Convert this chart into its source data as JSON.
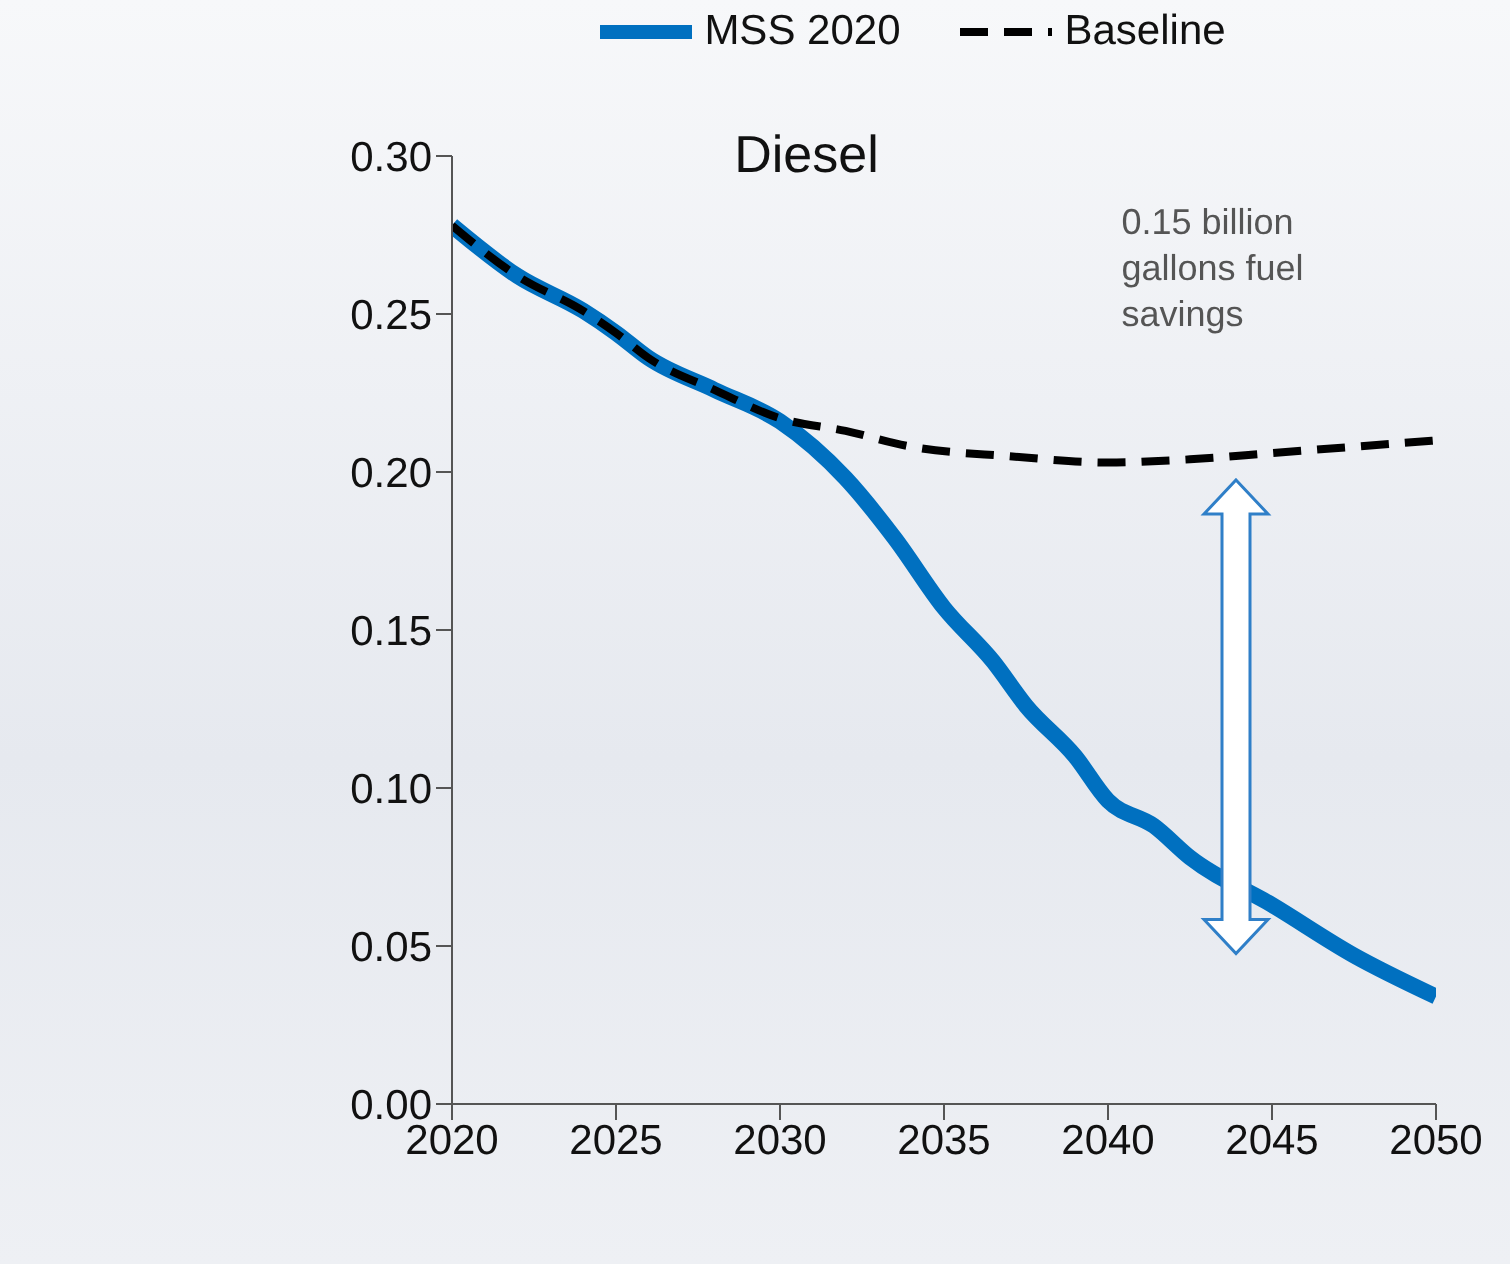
{
  "chart_data": {
    "type": "line",
    "title": "Diesel",
    "x": [
      2020,
      2022,
      2024,
      2025,
      2026,
      2028,
      2030,
      2032,
      2033.5,
      2035,
      2036.5,
      2037.5,
      2039,
      2040,
      2041.4,
      2042.5,
      2045,
      2047.5,
      2050
    ],
    "series": [
      {
        "name": "MSS 2020",
        "color": "#0070c0",
        "line_style": "solid",
        "values": [
          0.278,
          0.262,
          0.251,
          0.244,
          0.236,
          0.226,
          0.216,
          0.198,
          0.179,
          0.157,
          0.14,
          0.126,
          0.11,
          0.096,
          0.088,
          0.078,
          0.063,
          0.047,
          0.034
        ]
      },
      {
        "name": "Baseline",
        "color": "#000000",
        "line_style": "dashed",
        "x": [
          2020,
          2022,
          2024,
          2025,
          2026,
          2028,
          2030,
          2032,
          2034,
          2037,
          2040,
          2042.5,
          2045,
          2050
        ],
        "values": [
          0.278,
          0.262,
          0.251,
          0.244,
          0.236,
          0.226,
          0.217,
          0.213,
          0.208,
          0.205,
          0.203,
          0.204,
          0.206,
          0.21
        ]
      }
    ],
    "annotations": [
      "0.15 billion gallons fuel savings"
    ],
    "xlim": [
      2020,
      2050
    ],
    "xticks": [
      2020,
      2025,
      2030,
      2035,
      2040,
      2045,
      2050
    ],
    "ylim": [
      0,
      0.3
    ],
    "yticks": [
      {
        "value": 0,
        "label": "0.00"
      },
      {
        "value": 0.05,
        "label": "0.05"
      },
      {
        "value": 0.1,
        "label": "0.10"
      },
      {
        "value": 0.15,
        "label": "0.15"
      },
      {
        "value": 0.2,
        "label": "0.20"
      },
      {
        "value": 0.25,
        "label": "0.25"
      },
      {
        "value": 0.3,
        "label": "0.30"
      }
    ],
    "grid": false,
    "legend": "top",
    "marker": "none"
  }
}
